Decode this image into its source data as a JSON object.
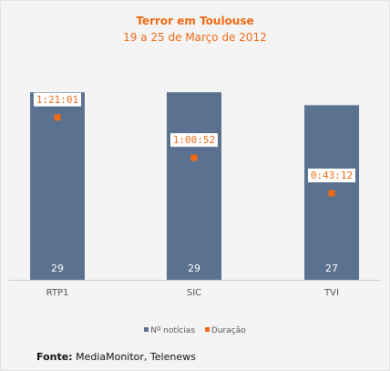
{
  "chart_data": {
    "type": "bar",
    "title": "Terror em Toulouse",
    "subtitle": "19 a 25 de Março de 2012",
    "categories": [
      "RTP1",
      "SIC",
      "TVI"
    ],
    "series": [
      {
        "name": "Nº notícias",
        "values": [
          29,
          29,
          27
        ],
        "axis": "left",
        "color": "#5a7290"
      },
      {
        "name": "Duração",
        "values": [
          "1:21:01",
          "1:00:52",
          "0:43:12"
        ],
        "axis": "right",
        "type": "scatter",
        "color": "#f06a14"
      }
    ],
    "ylim_left": [
      0,
      31
    ],
    "ylim_right_seconds": [
      0,
      6000
    ],
    "grid": false,
    "legend_position": "bottom"
  },
  "source": {
    "label": "Fonte:",
    "text": " MediaMonitor, Telenews"
  },
  "colors": {
    "bar": "#5a7290",
    "accent": "#f06a14"
  }
}
